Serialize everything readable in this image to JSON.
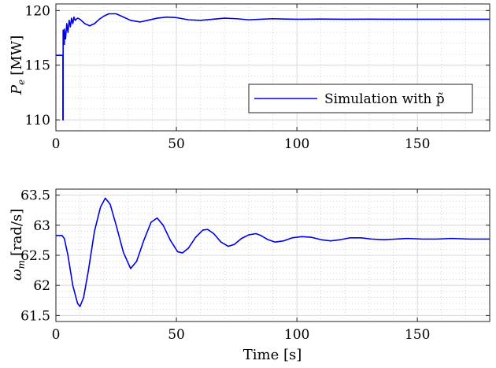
{
  "chart_data": [
    {
      "type": "line",
      "title": "",
      "xlabel": "",
      "ylabel_symbol": "P",
      "ylabel_subscript": "e",
      "ylabel_unit": "[MW]",
      "xlim": [
        0,
        180
      ],
      "ylim": [
        109,
        120.6
      ],
      "xticks": [
        0,
        50,
        100,
        150
      ],
      "yticks": [
        110,
        115,
        120
      ],
      "grid": true,
      "legend": "bottom-right",
      "series": [
        {
          "name": "Simulation with p̃",
          "color": "#0000e6",
          "x": [
            0,
            2.9,
            2.9,
            3.0,
            3.0,
            3.5,
            3.5,
            4.0,
            4.5,
            5.0,
            5.5,
            6.0,
            6.5,
            7.0,
            7.5,
            8.0,
            9.0,
            10.0,
            12.0,
            14.0,
            16.0,
            18.0,
            20.0,
            22.0,
            25.0,
            28.0,
            31.0,
            35.0,
            38.0,
            42.0,
            46.0,
            50.0,
            55.0,
            60.0,
            65.0,
            70.0,
            75.0,
            80.0,
            85.0,
            90.0,
            95.0,
            100.0,
            110.0,
            120.0,
            130.0,
            140.0,
            150.0,
            160.0,
            170.0,
            180.0
          ],
          "y": [
            115.9,
            115.9,
            110.0,
            110.0,
            118.2,
            116.9,
            118.3,
            117.4,
            118.8,
            118.0,
            119.1,
            118.5,
            119.3,
            118.8,
            119.4,
            119.1,
            119.3,
            119.2,
            118.8,
            118.6,
            118.8,
            119.2,
            119.5,
            119.7,
            119.7,
            119.4,
            119.1,
            118.95,
            119.1,
            119.3,
            119.4,
            119.35,
            119.15,
            119.1,
            119.2,
            119.3,
            119.25,
            119.15,
            119.2,
            119.25,
            119.22,
            119.2,
            119.22,
            119.2,
            119.21,
            119.2,
            119.2,
            119.2,
            119.2,
            119.2
          ]
        }
      ]
    },
    {
      "type": "line",
      "title": "",
      "xlabel": "Time [s]",
      "ylabel_symbol": "ω",
      "ylabel_subscript": "m",
      "ylabel_unit": "[rad/s]",
      "xlim": [
        0,
        180
      ],
      "ylim": [
        61.4,
        63.6
      ],
      "xticks": [
        0,
        50,
        100,
        150
      ],
      "yticks": [
        61.5,
        62,
        62.5,
        63,
        63.5
      ],
      "grid": true,
      "series": [
        {
          "name": "omega_m",
          "color": "#0000e6",
          "x": [
            0,
            2.5,
            3.5,
            5.0,
            7.0,
            9.0,
            10.0,
            11.5,
            13.5,
            16.0,
            18.5,
            20.5,
            22.5,
            25.0,
            28.0,
            31.0,
            33.5,
            36.5,
            39.5,
            42.0,
            44.5,
            47.5,
            50.5,
            52.5,
            55.0,
            58.0,
            61.0,
            63.0,
            65.5,
            68.5,
            71.5,
            74.0,
            77.0,
            80.0,
            83.0,
            85.0,
            88.0,
            91.0,
            94.5,
            98.0,
            102.0,
            106.0,
            110.0,
            114.0,
            118.0,
            122.0,
            126.5,
            131.0,
            136.0,
            141.0,
            146.0,
            152.0,
            158.0,
            164.0,
            172.0,
            180.0
          ],
          "y": [
            62.83,
            62.83,
            62.78,
            62.5,
            62.0,
            61.7,
            61.65,
            61.8,
            62.25,
            62.9,
            63.3,
            63.45,
            63.35,
            63.0,
            62.55,
            62.28,
            62.4,
            62.75,
            63.05,
            63.12,
            63.0,
            62.75,
            62.56,
            62.54,
            62.62,
            62.8,
            62.92,
            62.93,
            62.86,
            62.72,
            62.65,
            62.68,
            62.78,
            62.84,
            62.86,
            62.83,
            62.76,
            62.72,
            62.74,
            62.79,
            62.81,
            62.8,
            62.76,
            62.74,
            62.76,
            62.79,
            62.79,
            62.77,
            62.76,
            62.77,
            62.78,
            62.77,
            62.77,
            62.78,
            62.77,
            62.77
          ]
        }
      ]
    }
  ]
}
